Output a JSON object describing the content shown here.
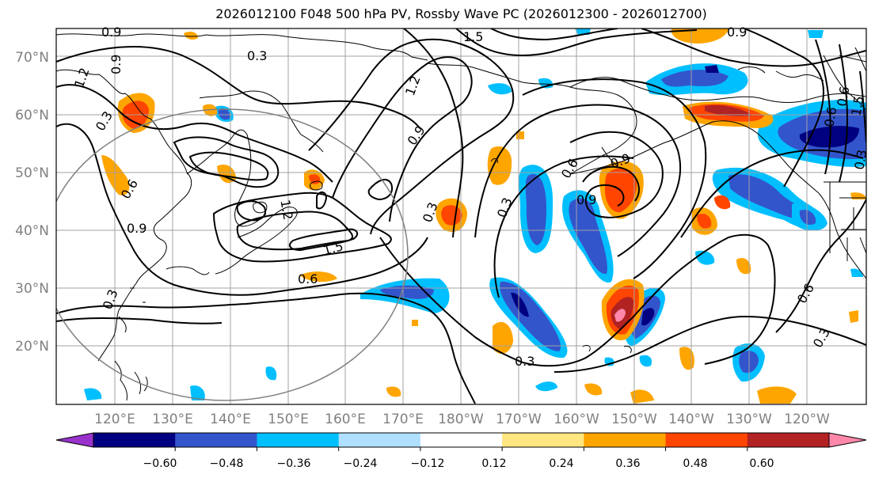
{
  "title": "2026012100 F048 500 hPa PV, Rossby Wave PC (2026012300 - 2026012700)",
  "lat_labels": [
    "70°N",
    "60°N",
    "50°N",
    "40°N",
    "30°N",
    "20°N"
  ],
  "lon_labels": [
    "120°E",
    "130°E",
    "140°E",
    "150°E",
    "160°E",
    "170°E",
    "180°W",
    "170°W",
    "160°W",
    "150°W",
    "140°W",
    "130°W",
    "120°W"
  ],
  "contour_labels": [
    "0.9",
    "0.3",
    "1.5",
    "0.9",
    "1.2",
    "0.9",
    "0.3",
    "0.9",
    "1.2",
    "1.5",
    "0.6",
    "0.3",
    "0.3",
    "0.6",
    "0.9",
    "0.9",
    "0.3",
    "0.3",
    "0.6",
    "0.6",
    "0.6",
    "0.3",
    "0.3",
    "0.9",
    "1.5",
    "0.6",
    "1.2"
  ],
  "colorbar": {
    "colors": [
      "#9933cc",
      "#000080",
      "#3355cc",
      "#00bfff",
      "#b0e0ff",
      "#ffffff",
      "#ffe680",
      "#ffa500",
      "#ff4500",
      "#b22222",
      "#ff88aa"
    ],
    "ticks": [
      "−0.60",
      "−0.48",
      "−0.36",
      "−0.24",
      "−0.12",
      "0.12",
      "0.24",
      "0.36",
      "0.48",
      "0.60"
    ]
  },
  "map": {
    "extent": "110°E to 115°W, 10°N to 75°N",
    "fields": [
      "500 hPa PV (black contours)",
      "Rossby Wave PC (shaded)"
    ]
  }
}
